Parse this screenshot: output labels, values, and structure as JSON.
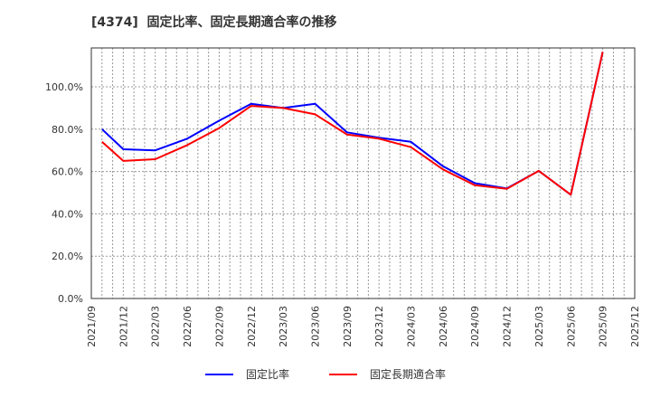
{
  "title": "[4374]  固定比率、固定長期適合率の推移",
  "legend": [
    {
      "label": "固定比率",
      "color": "#0000ff"
    },
    {
      "label": "固定長期適合率",
      "color": "#ff0000"
    }
  ],
  "chart_data": {
    "type": "line",
    "title": "[4374]  固定比率、固定長期適合率の推移",
    "xlabel": "",
    "ylabel": "",
    "ylim": [
      0,
      120
    ],
    "grid": true,
    "legend_position": "bottom",
    "y_ticks": [
      "0.0%",
      "20.0%",
      "40.0%",
      "60.0%",
      "80.0%",
      "100.0%"
    ],
    "x_ticks": [
      "2021/09",
      "2021/12",
      "2022/03",
      "2022/06",
      "2022/09",
      "2022/12",
      "2023/03",
      "2023/06",
      "2023/09",
      "2023/12",
      "2024/03",
      "2024/06",
      "2024/09",
      "2024/12",
      "2025/03",
      "2025/06",
      "2025/09",
      "2025/12"
    ],
    "x": [
      "2021/10",
      "2021/12",
      "2022/03",
      "2022/06",
      "2022/09",
      "2022/12",
      "2023/03",
      "2023/06",
      "2023/09",
      "2023/12",
      "2024/03",
      "2024/06",
      "2024/09",
      "2024/12",
      "2025/03",
      "2025/06",
      "2025/09"
    ],
    "series": [
      {
        "name": "固定比率",
        "color": "#0000ff",
        "values": [
          80.0,
          70.5,
          70.0,
          75.5,
          84.0,
          92.0,
          90.0,
          92.0,
          78.5,
          76.0,
          74.0,
          62.5,
          54.5,
          52.0,
          60.3,
          49.0,
          116.5
        ]
      },
      {
        "name": "固定長期適合率",
        "color": "#ff0000",
        "values": [
          74.0,
          65.0,
          65.8,
          72.5,
          80.5,
          91.0,
          90.0,
          87.0,
          77.5,
          75.5,
          71.5,
          61.0,
          53.5,
          51.8,
          60.3,
          49.0,
          116.5
        ]
      }
    ]
  }
}
